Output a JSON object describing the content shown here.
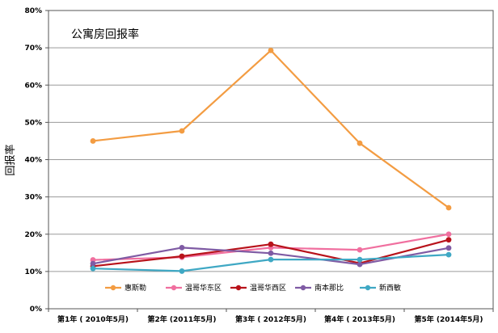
{
  "chart_data": {
    "type": "line",
    "title": "公寓房回报率",
    "ylabel": "回报率",
    "xlabel": "",
    "categories": [
      "第1年 ( 2010年5月)",
      "第2年 (2011年5月)",
      "第3年 ( 2012年5月)",
      "第4年 ( 2013年5月)",
      "第5年 (2014年5月)"
    ],
    "y_ticks": [
      "0%",
      "10%",
      "20%",
      "30%",
      "40%",
      "50%",
      "60%",
      "70%",
      "80%"
    ],
    "ylim": [
      0,
      80
    ],
    "grid": true,
    "legend_position": "bottom-inside",
    "series": [
      {
        "name": "惠斯勒",
        "color": "#f39c42",
        "values": [
          45.0,
          47.7,
          69.3,
          44.4,
          27.1
        ]
      },
      {
        "name": "温哥华东区",
        "color": "#f06f9f",
        "values": [
          13.1,
          13.8,
          16.4,
          15.8,
          20.0
        ]
      },
      {
        "name": "温哥华西区",
        "color": "#b8121a",
        "values": [
          11.4,
          14.1,
          17.3,
          12.2,
          18.5
        ]
      },
      {
        "name": "南本那比",
        "color": "#7f5ba4",
        "values": [
          12.1,
          16.4,
          14.9,
          11.9,
          16.3
        ]
      },
      {
        "name": "新西敏",
        "color": "#3fa8c4",
        "values": [
          10.8,
          10.1,
          13.2,
          13.2,
          14.5
        ]
      }
    ]
  }
}
